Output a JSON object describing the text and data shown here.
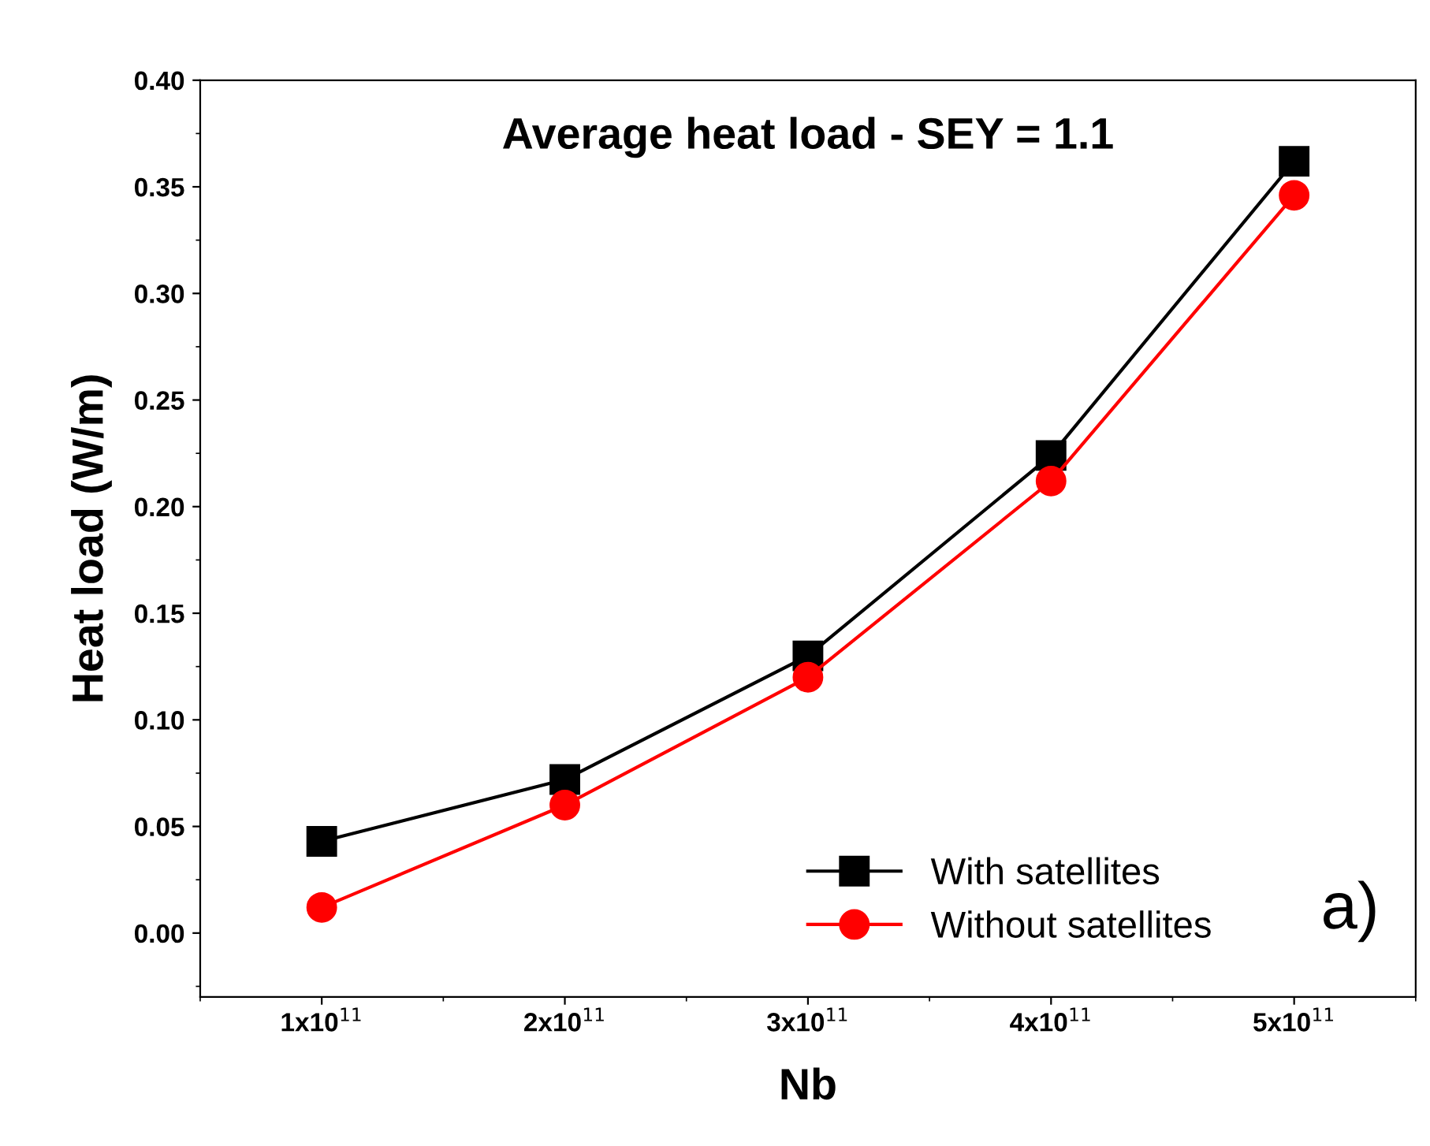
{
  "chart_data": {
    "type": "line",
    "title": "Average heat load - SEY = 1.1",
    "xlabel": "Nb",
    "ylabel": "Heat load (W/m)",
    "x": [
      100000000000.0,
      200000000000.0,
      300000000000.0,
      400000000000.0,
      500000000000.0
    ],
    "series": [
      {
        "name": "With satellites",
        "color": "#000000",
        "marker": "square",
        "values": [
          0.043,
          0.072,
          0.13,
          0.224,
          0.362
        ]
      },
      {
        "name": "Without satellites",
        "color": "#ff0000",
        "marker": "circle",
        "values": [
          0.012,
          0.06,
          0.12,
          0.212,
          0.346
        ]
      }
    ],
    "xlim": [
      50000000000.0,
      550000000000.0
    ],
    "xticks": [
      {
        "value": 100000000000.0,
        "label": "1x10$^{11}$"
      },
      {
        "value": 200000000000.0,
        "label": "2x10$^{11}$"
      },
      {
        "value": 300000000000.0,
        "label": "3x10$^{11}$"
      },
      {
        "value": 400000000000.0,
        "label": "4x10$^{11}$"
      },
      {
        "value": 500000000000.0,
        "label": "5x10$^{11}$"
      }
    ],
    "ylim": [
      -0.03,
      0.4
    ],
    "yticks": [
      {
        "value": 0,
        "label": "0.00"
      },
      {
        "value": 0.05,
        "label": "0.05"
      },
      {
        "value": 0.1,
        "label": "0.10"
      },
      {
        "value": 0.15,
        "label": "0.15"
      },
      {
        "value": 0.2,
        "label": "0.20"
      },
      {
        "value": 0.25,
        "label": "0.25"
      },
      {
        "value": 0.3,
        "label": "0.30"
      },
      {
        "value": 0.35,
        "label": "0.35"
      },
      {
        "value": 0.4,
        "label": "0.40"
      }
    ],
    "annotations": [
      "a)"
    ],
    "legend": "bottom right",
    "grid": false,
    "line_style": "solid"
  }
}
